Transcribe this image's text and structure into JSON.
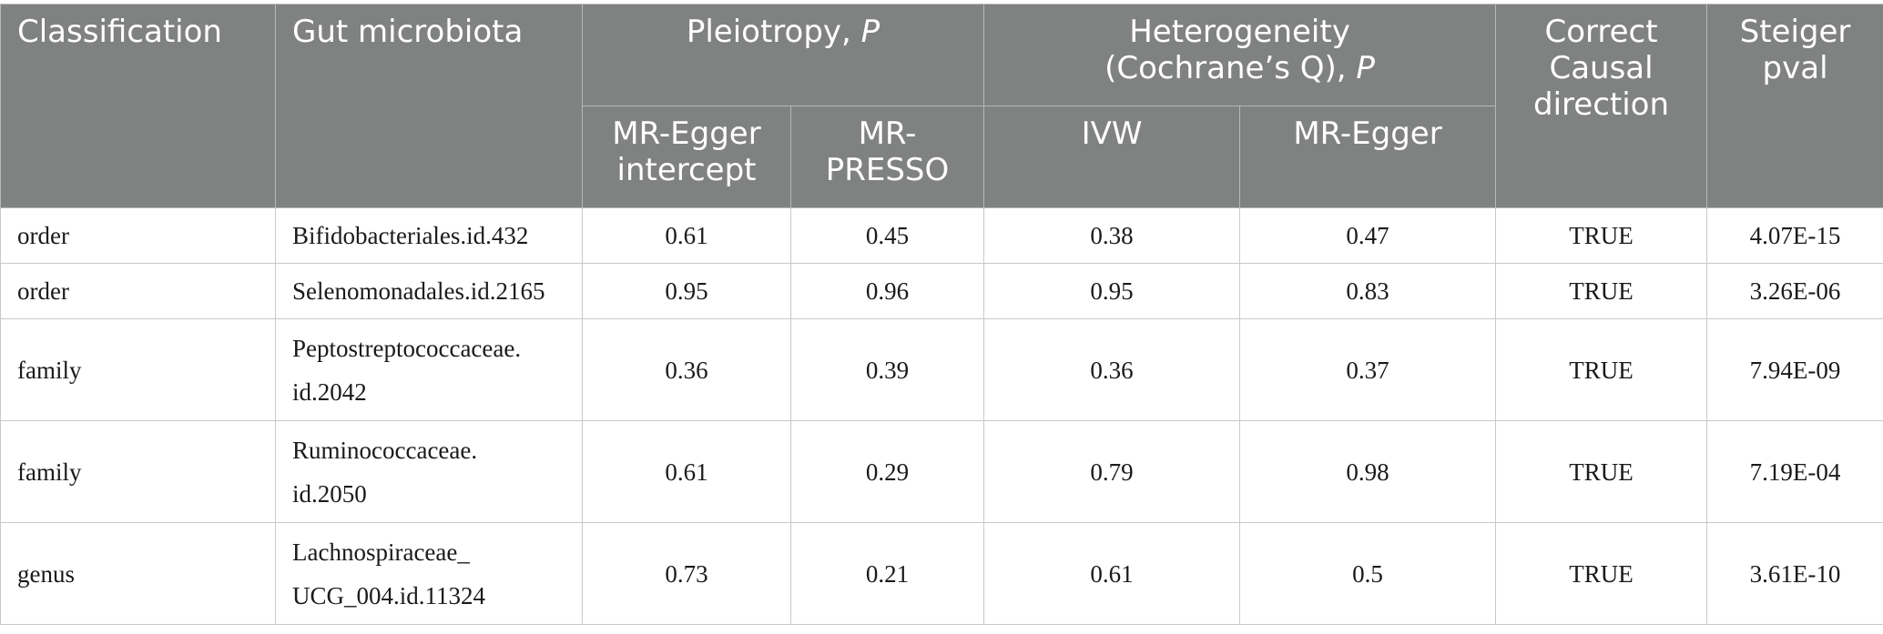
{
  "header": {
    "classification": "Classification",
    "gut_microbiota": "Gut microbiota",
    "pleiotropy": "Pleiotropy, ",
    "pleiotropy_p": "P",
    "heterogeneity_line1": "Heterogeneity",
    "heterogeneity_line2": "(Cochrane’s Q), ",
    "heterogeneity_p": "P",
    "correct_causal": "Correct Causal direction",
    "steiger": "Steiger pval",
    "mr_egger_intercept": "MR-Egger intercept",
    "mr_presso": "MR-PRESSO",
    "ivw": "IVW",
    "mr_egger": "MR-Egger"
  },
  "rows": [
    {
      "classification": "order",
      "microbiota": [
        "Bifidobacteriales.id.432"
      ],
      "egger_intercept": "0.61",
      "presso": "0.45",
      "ivw": "0.38",
      "egger": "0.47",
      "direction": "TRUE",
      "steiger": "4.07E-15"
    },
    {
      "classification": "order",
      "microbiota": [
        "Selenomonadales.id.2165"
      ],
      "egger_intercept": "0.95",
      "presso": "0.96",
      "ivw": "0.95",
      "egger": "0.83",
      "direction": "TRUE",
      "steiger": "3.26E-06"
    },
    {
      "classification": "family",
      "microbiota": [
        "Peptostreptococcaceae.",
        "id.2042"
      ],
      "egger_intercept": "0.36",
      "presso": "0.39",
      "ivw": "0.36",
      "egger": "0.37",
      "direction": "TRUE",
      "steiger": "7.94E-09"
    },
    {
      "classification": "family",
      "microbiota": [
        "Ruminococcaceae.",
        "id.2050"
      ],
      "egger_intercept": "0.61",
      "presso": "0.29",
      "ivw": "0.79",
      "egger": "0.98",
      "direction": "TRUE",
      "steiger": "7.19E-04"
    },
    {
      "classification": "genus",
      "microbiota": [
        "Lachnospiraceae_",
        "UCG_004.id.11324"
      ],
      "egger_intercept": "0.73",
      "presso": "0.21",
      "ivw": "0.61",
      "egger": "0.5",
      "direction": "TRUE",
      "steiger": "3.61E-10"
    }
  ],
  "colors": {
    "header_bg": "#808281",
    "header_text": "#ffffff",
    "border": "#c9c9c9"
  }
}
